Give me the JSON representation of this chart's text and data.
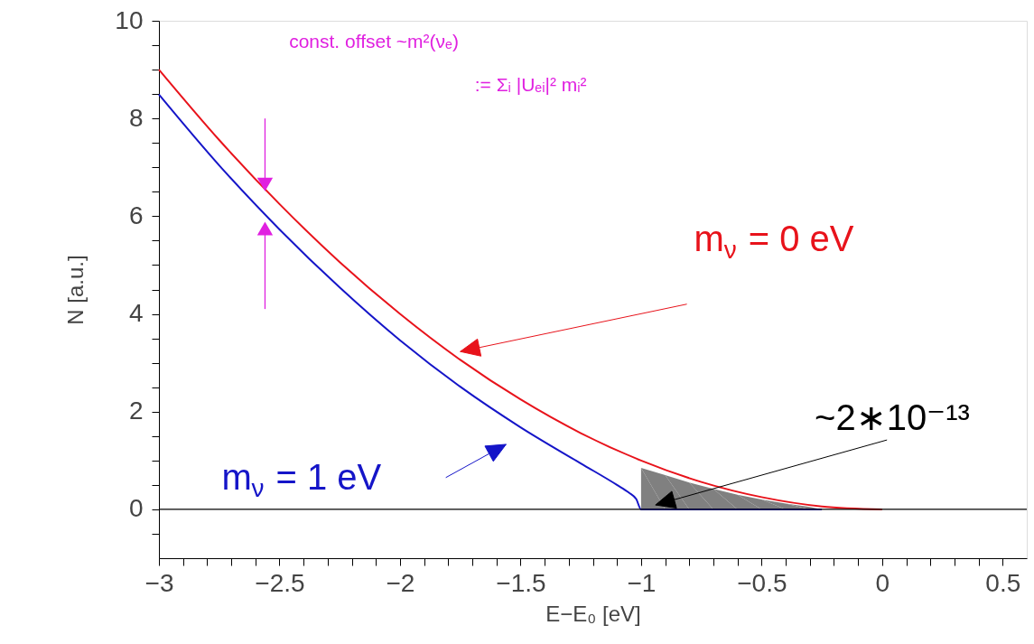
{
  "chart_data": {
    "type": "line",
    "xlabel": "E−E₀ [eV]",
    "ylabel": "N [a.u.]",
    "xlim": [
      -3,
      0.6
    ],
    "ylim": [
      -1,
      10
    ],
    "xticks": [
      -3,
      {
        "value": -2.9,
        "label": null
      },
      {
        "value": -2.8,
        "label": null
      },
      {
        "value": -2.7,
        "label": null
      },
      {
        "value": -2.6,
        "label": null
      },
      -2.5,
      {
        "value": -2.4,
        "label": null
      },
      {
        "value": -2.3,
        "label": null
      },
      {
        "value": -2.2,
        "label": null
      },
      {
        "value": -2.1,
        "label": null
      },
      -2,
      {
        "value": -1.9,
        "label": null
      },
      {
        "value": -1.8,
        "label": null
      },
      {
        "value": -1.7,
        "label": null
      },
      {
        "value": -1.6,
        "label": null
      },
      -1.5,
      {
        "value": -1.4,
        "label": null
      },
      {
        "value": -1.3,
        "label": null
      },
      {
        "value": -1.2,
        "label": null
      },
      {
        "value": -1.1,
        "label": null
      },
      -1,
      {
        "value": -0.9,
        "label": null
      },
      {
        "value": -0.8,
        "label": null
      },
      {
        "value": -0.7,
        "label": null
      },
      {
        "value": -0.6,
        "label": null
      },
      -0.5,
      {
        "value": -0.4,
        "label": null
      },
      {
        "value": -0.3,
        "label": null
      },
      {
        "value": -0.2,
        "label": null
      },
      {
        "value": -0.1,
        "label": null
      },
      0,
      {
        "value": 0.1,
        "label": null
      },
      {
        "value": 0.2,
        "label": null
      },
      {
        "value": 0.3,
        "label": null
      },
      {
        "value": 0.4,
        "label": null
      },
      0.5
    ],
    "yticks": [
      {
        "value": -0.5,
        "label": null
      },
      0,
      {
        "value": 0.5,
        "label": null
      },
      {
        "value": 1,
        "label": null
      },
      {
        "value": 1.5,
        "label": null
      },
      2,
      {
        "value": 2.5,
        "label": null
      },
      {
        "value": 3,
        "label": null
      },
      {
        "value": 3.5,
        "label": null
      },
      4,
      {
        "value": 4.5,
        "label": null
      },
      {
        "value": 5,
        "label": null
      },
      {
        "value": 5.5,
        "label": null
      },
      6,
      {
        "value": 6.5,
        "label": null
      },
      {
        "value": 7,
        "label": null
      },
      {
        "value": 7.5,
        "label": null
      },
      8,
      {
        "value": 8.5,
        "label": null
      },
      {
        "value": 9,
        "label": null
      },
      {
        "value": 9.5,
        "label": null
      },
      10
    ],
    "series": [
      {
        "type": "area",
        "color": "#808080",
        "x": [
          -1,
          -1,
          -0.9,
          -0.8,
          -0.7,
          -0.6,
          -0.5,
          -0.4,
          -0.3,
          -0.25
        ],
        "values": [
          0,
          0.85,
          0.7,
          0.55,
          0.42,
          0.3,
          0.2,
          0.12,
          0.05,
          0
        ]
      },
      {
        "name": "m$_{ν}$ = 0 eV",
        "color": "#e8131b",
        "x": [
          -3,
          -2.75,
          -2.5,
          -2.25,
          -2,
          -1.75,
          -1.5,
          -1.25,
          -1,
          -0.75,
          -0.5,
          -0.25,
          0
        ],
        "values": [
          9,
          7.56,
          6.25,
          5.06,
          4,
          3.06,
          2.25,
          1.56,
          1,
          0.56,
          0.25,
          0.06,
          0
        ]
      },
      {
        "name": "m$_{ν}$ = 1 eV",
        "color": "#1515c8",
        "x": [
          -3,
          -2.75,
          -2.5,
          -2.25,
          -2,
          -1.75,
          -1.5,
          -1.25,
          -1.1,
          -1.05,
          -1.02,
          -1,
          -0.25
        ],
        "values": [
          8.49,
          7.04,
          5.73,
          4.54,
          3.46,
          2.51,
          1.68,
          0.94,
          0.5,
          0.34,
          0.21,
          0,
          0
        ]
      }
    ],
    "ref_lines": [
      {
        "axis": "y",
        "value": 0,
        "color": "#000000"
      }
    ],
    "annotations": [
      "const. offset ~m²(νₑ)",
      ":= Σᵢ |Uₑᵢ|² mᵢ²",
      {
        "text": "~2∗10⁻¹³",
        "x": -0.94,
        "y": 0.09
      }
    ],
    "marker": "none",
    "line_style": "solid",
    "grid": false
  }
}
